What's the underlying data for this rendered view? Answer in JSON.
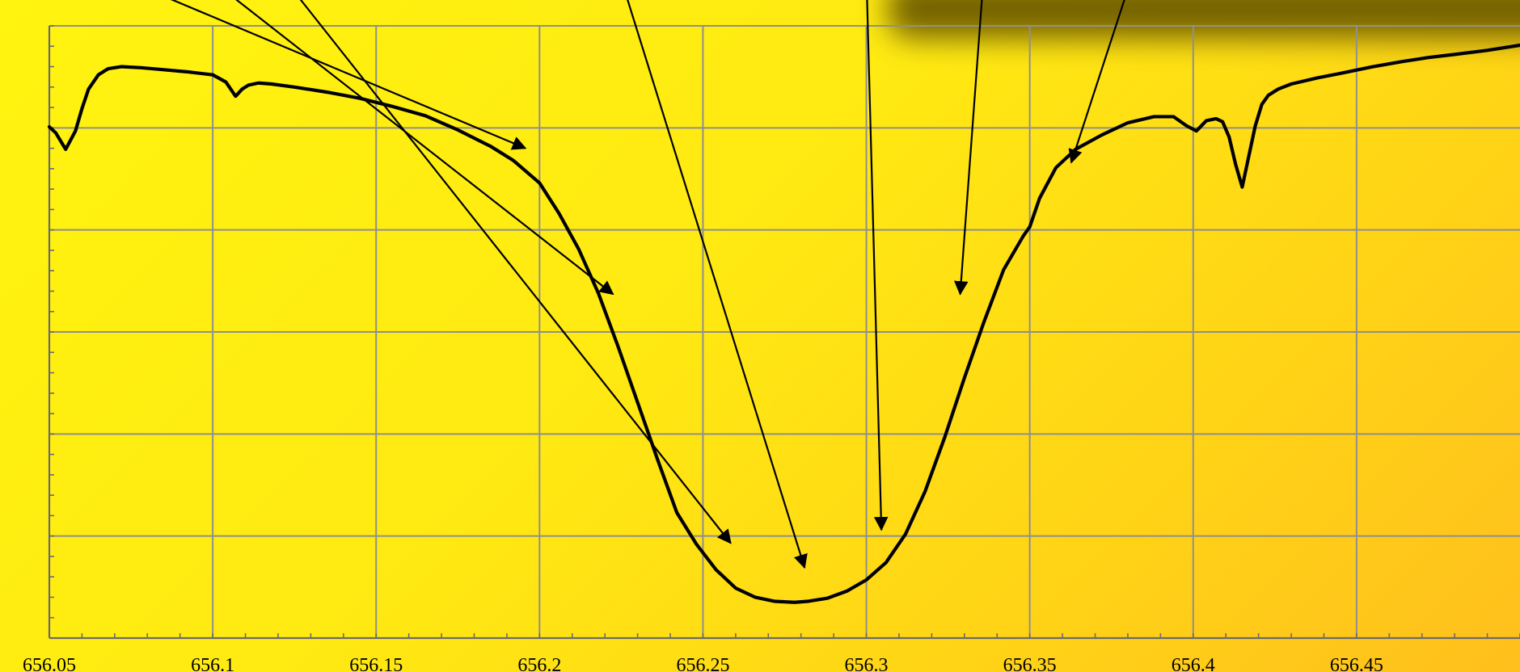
{
  "chart_data": {
    "type": "line",
    "title": "",
    "xlabel": "",
    "ylabel": "",
    "xlim": [
      656.05,
      656.5
    ],
    "ylim": [
      0,
      6
    ],
    "x_ticks": [
      656.05,
      656.1,
      656.15,
      656.2,
      656.25,
      656.3,
      656.35,
      656.4,
      656.45
    ],
    "x_tick_labels": [
      "656.05",
      "656.1",
      "656.15",
      "656.2",
      "656.25",
      "656.3",
      "656.35",
      "656.4",
      "656.45"
    ],
    "y_gridlines": [
      0,
      1,
      2,
      3,
      4,
      5,
      6
    ],
    "grid": true,
    "colors": {
      "line": "#000000",
      "grid": "#8f8f8f",
      "axis": "#6b6b6b",
      "shadow": "#6f5d06"
    },
    "series": [
      {
        "x": [
          656.05,
          656.052,
          656.055,
          656.058,
          656.06,
          656.062,
          656.065,
          656.068,
          656.072,
          656.078,
          656.085,
          656.092,
          656.1,
          656.104,
          656.107,
          656.109,
          656.111,
          656.114,
          656.118,
          656.125,
          656.135,
          656.145,
          656.155,
          656.165,
          656.175,
          656.185,
          656.192,
          656.2,
          656.206,
          656.212,
          656.218,
          656.224,
          656.23,
          656.236,
          656.242,
          656.248,
          656.254,
          656.26,
          656.266,
          656.272,
          656.278,
          656.282,
          656.288,
          656.294,
          656.3,
          656.306,
          656.312,
          656.318,
          656.324,
          656.33,
          656.336,
          656.342,
          656.348,
          656.35,
          656.353,
          656.358,
          656.364,
          656.372,
          656.38,
          656.388,
          656.394,
          656.398,
          656.401,
          656.404,
          656.407,
          656.409,
          656.411,
          656.413,
          656.415,
          656.417,
          656.419,
          656.421,
          656.423,
          656.426,
          656.43,
          656.438,
          656.446,
          656.455,
          656.464,
          656.472,
          656.48,
          656.49,
          656.5
        ],
        "y": [
          5.01,
          4.95,
          4.79,
          4.97,
          5.19,
          5.38,
          5.52,
          5.58,
          5.6,
          5.59,
          5.57,
          5.55,
          5.52,
          5.45,
          5.31,
          5.38,
          5.42,
          5.44,
          5.43,
          5.4,
          5.35,
          5.29,
          5.21,
          5.12,
          4.98,
          4.82,
          4.68,
          4.46,
          4.16,
          3.81,
          3.38,
          2.86,
          2.31,
          1.76,
          1.23,
          0.92,
          0.67,
          0.49,
          0.4,
          0.36,
          0.35,
          0.36,
          0.39,
          0.46,
          0.57,
          0.74,
          1.02,
          1.44,
          1.97,
          2.55,
          3.1,
          3.61,
          3.94,
          4.03,
          4.31,
          4.61,
          4.79,
          4.93,
          5.05,
          5.11,
          5.11,
          5.02,
          4.97,
          5.07,
          5.09,
          5.06,
          4.91,
          4.64,
          4.42,
          4.72,
          5.02,
          5.23,
          5.32,
          5.38,
          5.43,
          5.49,
          5.54,
          5.6,
          5.65,
          5.69,
          5.72,
          5.76,
          5.81
        ]
      }
    ],
    "arrows": [
      {
        "from": [
          656.0858,
          6.28
        ],
        "to": [
          656.1957,
          4.8
        ]
      },
      {
        "from": [
          656.1063,
          6.28
        ],
        "to": [
          656.2225,
          3.37
        ]
      },
      {
        "from": [
          656.1263,
          6.28
        ],
        "to": [
          656.2585,
          0.93
        ]
      },
      {
        "from": [
          656.2267,
          6.28
        ],
        "to": [
          656.2811,
          0.69
        ]
      },
      {
        "from": [
          656.3002,
          6.28
        ],
        "to": [
          656.3046,
          1.06
        ]
      },
      {
        "from": [
          656.3354,
          6.28
        ],
        "to": [
          656.3287,
          3.37
        ]
      },
      {
        "from": [
          656.3792,
          6.28
        ],
        "to": [
          656.3627,
          4.66
        ]
      }
    ]
  }
}
